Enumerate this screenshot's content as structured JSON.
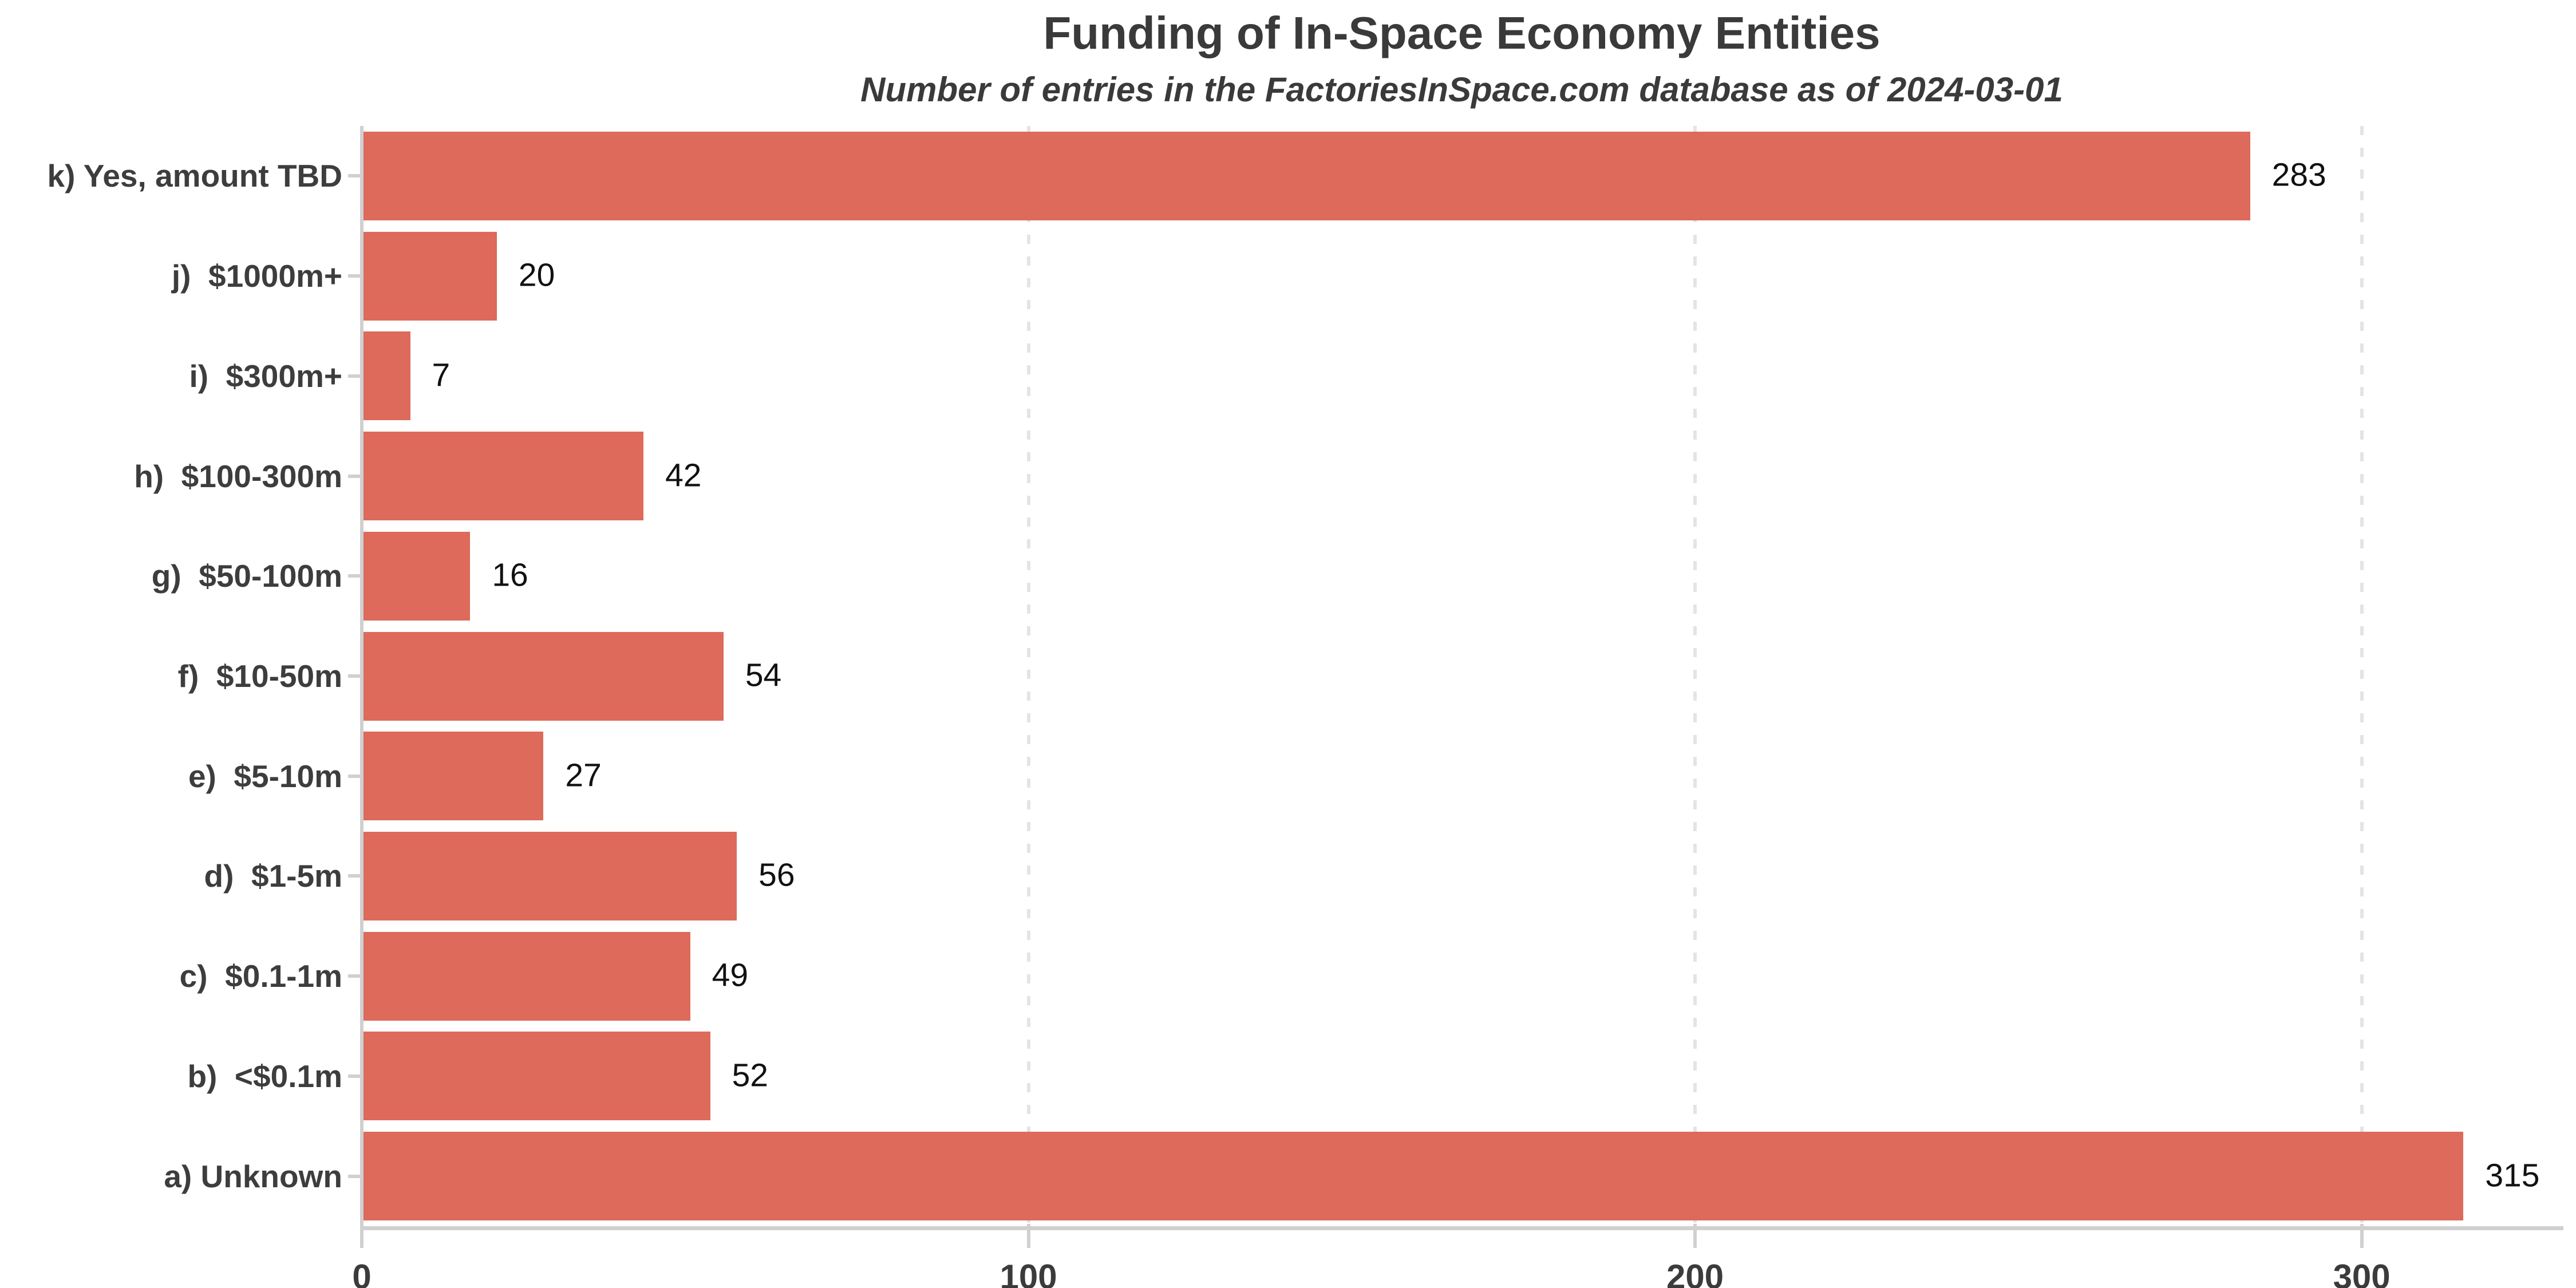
{
  "page": {
    "background": "#ffffff"
  },
  "chart_data": {
    "type": "bar",
    "orientation": "horizontal",
    "title": "Funding of In-Space Economy Entities",
    "subtitle": "Number of entries in the FactoriesInSpace.com database as of 2024-03-01",
    "categories": [
      "k) Yes, amount TBD",
      "j)  $1000m+",
      "i)  $300m+",
      "h)  $100-300m",
      "g)  $50-100m",
      "f)  $10-50m",
      "e)  $5-10m",
      "d)  $1-5m",
      "c)  $0.1-1m",
      "b)  <$0.1m",
      "a) Unknown"
    ],
    "values": [
      283,
      20,
      7,
      42,
      16,
      54,
      27,
      56,
      49,
      52,
      315
    ],
    "value_labels": [
      "283",
      "20",
      "7",
      "42",
      "16",
      "54",
      "27",
      "56",
      "49",
      "52",
      "315"
    ],
    "xlabel": "",
    "ylabel": "",
    "xticks": [
      0,
      100,
      200,
      300
    ],
    "xlim": [
      0,
      330
    ],
    "grid": "vertical-dashed",
    "legend": "none",
    "colors": {
      "bar": "#dd6a5a",
      "title": "#3a3a3a",
      "subtitle": "#3a3a3a",
      "category_label": "#3d3d3d",
      "value_label": "#111111",
      "tick_label": "#3b3b3b",
      "axis": "#d0d0d0",
      "gridline": "#e4e4e4"
    }
  }
}
